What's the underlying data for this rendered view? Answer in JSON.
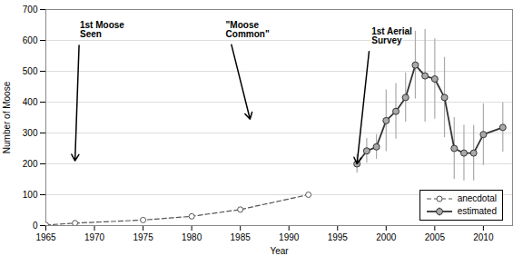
{
  "chart_data": {
    "type": "line",
    "xlabel": "Year",
    "ylabel": "Number of Moose",
    "xlim": [
      1965,
      2013
    ],
    "ylim": [
      0,
      700
    ],
    "xticks": [
      1965,
      1970,
      1975,
      1980,
      1985,
      1990,
      1995,
      2000,
      2005,
      2010
    ],
    "yticks": [
      0,
      100,
      200,
      300,
      400,
      500,
      600,
      700
    ],
    "grid": "y",
    "legend": "lower right",
    "series": [
      {
        "name": "anecdotal",
        "color": "#555555",
        "line_style": "dashed",
        "marker": "open_circle",
        "x": [
          1965,
          1968,
          1975,
          1980,
          1985,
          1992
        ],
        "values": [
          2,
          8,
          18,
          30,
          52,
          100
        ]
      },
      {
        "name": "estimated",
        "color": "#333333",
        "line_style": "solid",
        "marker": "circle",
        "x": [
          1997,
          1998,
          1999,
          2000,
          2001,
          2002,
          2003,
          2004,
          2005,
          2006,
          2007,
          2008,
          2009,
          2010,
          2012
        ],
        "values": [
          200,
          242,
          255,
          340,
          370,
          415,
          520,
          485,
          475,
          415,
          250,
          235,
          235,
          295,
          318
        ],
        "errors": [
          30,
          40,
          40,
          100,
          90,
          80,
          110,
          150,
          130,
          130,
          100,
          90,
          90,
          100,
          80
        ]
      }
    ],
    "annotations": [
      {
        "text": "1st Moose\nSeen",
        "text_x": 1968.5,
        "text_y": 660,
        "arrow_x": 1968,
        "arrow_y": 210
      },
      {
        "text": "\"Moose\nCommon\"",
        "text_x": 1983.5,
        "text_y": 660,
        "arrow_x": 1986,
        "arrow_y": 345
      },
      {
        "text": "1st Aerial\nSurvey",
        "text_x": 1998.5,
        "text_y": 640,
        "arrow_x": 1997,
        "arrow_y": 200
      }
    ]
  }
}
